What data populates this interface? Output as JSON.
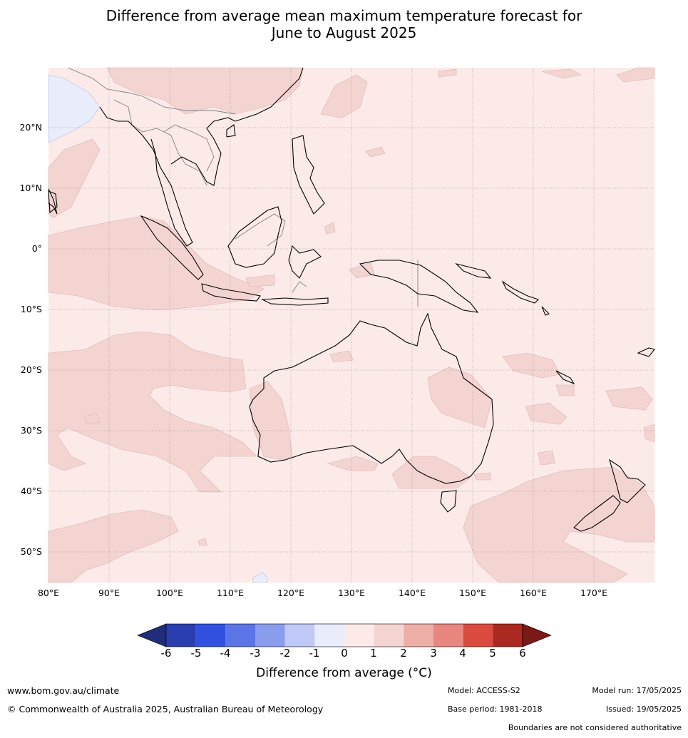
{
  "title_line1": "Difference from average mean maximum temperature forecast for",
  "title_line2": "June to August 2025",
  "map": {
    "lon_labels": [
      "80°E",
      "90°E",
      "100°E",
      "110°E",
      "120°E",
      "130°E",
      "140°E",
      "150°E",
      "160°E",
      "170°E"
    ],
    "lat_labels": [
      "20°N",
      "10°N",
      "0°",
      "10°S",
      "20°S",
      "30°S",
      "40°S",
      "50°S"
    ],
    "colors": {
      "base": "#fbeae8",
      "anom_1_2": "#f4d4d1",
      "anom_neg_0_1": "#e8ecfb",
      "coast": "#000000",
      "border": "#808080"
    }
  },
  "colorbar": {
    "ticks": [
      "-6",
      "-5",
      "-4",
      "-3",
      "-2",
      "-1",
      "0",
      "1",
      "2",
      "3",
      "4",
      "5",
      "6"
    ],
    "colors": [
      "#1f2d7a",
      "#2a3eb0",
      "#3050e0",
      "#5b74e6",
      "#8a9ded",
      "#c0c8f5",
      "#e8ecfb",
      "#fbeae8",
      "#f4d4d1",
      "#eeaea8",
      "#e8877f",
      "#d94b3f",
      "#aa2a22",
      "#7a1a16"
    ],
    "label": "Difference from average (°C)"
  },
  "footer": {
    "url": "www.bom.gov.au/climate",
    "copyright": "© Commonwealth of Australia 2025, Australian Bureau of Meteorology",
    "model": "Model: ACCESS-S2",
    "base_period": "Base period: 1981-2018",
    "model_run": "Model run: 17/05/2025",
    "issued": "Issued: 19/05/2025",
    "disclaimer": "Boundaries are not considered authoritative"
  }
}
